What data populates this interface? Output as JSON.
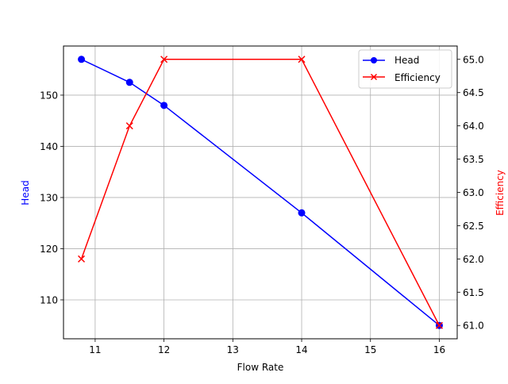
{
  "chart_data": {
    "type": "line",
    "title": "",
    "xlabel": "Flow Rate",
    "x": [
      10.8,
      11.5,
      12,
      14,
      16
    ],
    "xlim": [
      10.54,
      16.26
    ],
    "xticks": [
      11,
      12,
      13,
      14,
      15,
      16
    ],
    "grid": true,
    "legend_position": "upper right",
    "axes": [
      {
        "side": "left",
        "ylabel": "Head",
        "label_color": "#0000ff",
        "ylim": [
          102.4,
          159.6
        ],
        "yticks": [
          110,
          120,
          130,
          140,
          150
        ]
      },
      {
        "side": "right",
        "ylabel": "Efficiency",
        "label_color": "#ff0000",
        "ylim": [
          60.8,
          65.2
        ],
        "yticks": [
          61.0,
          61.5,
          62.0,
          62.5,
          63.0,
          63.5,
          64.0,
          64.5,
          65.0
        ]
      }
    ],
    "series": [
      {
        "name": "Head",
        "axis": "left",
        "color": "#0000ff",
        "marker": "o",
        "values": [
          157,
          152.5,
          148,
          127,
          105
        ]
      },
      {
        "name": "Efficiency",
        "axis": "right",
        "color": "#ff0000",
        "marker": "x",
        "values": [
          62,
          64,
          65,
          65,
          61
        ]
      }
    ]
  },
  "labels": {
    "xlabel": "Flow Rate",
    "ylabel_left": "Head",
    "ylabel_right": "Efficiency",
    "legend": [
      "Head",
      "Efficiency"
    ]
  }
}
